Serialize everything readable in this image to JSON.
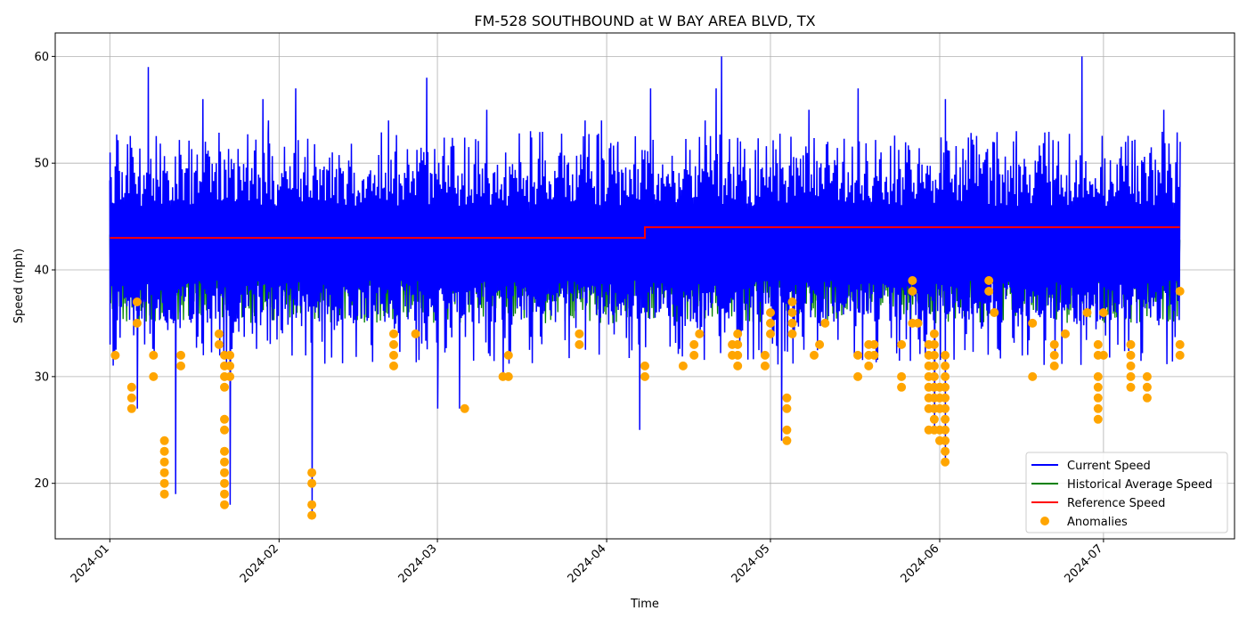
{
  "chart_data": {
    "type": "line",
    "title": "FM-528 SOUTHBOUND at W BAY AREA BLVD, TX",
    "xlabel": "Time",
    "ylabel": "Speed (mph)",
    "x_range": [
      "2023-12-22",
      "2024-07-25"
    ],
    "ylim": [
      14.8,
      62.2
    ],
    "x_ticks": [
      "2024-01",
      "2024-02",
      "2024-03",
      "2024-04",
      "2024-05",
      "2024-06",
      "2024-07"
    ],
    "x_tick_dates": [
      "2024-01-01",
      "2024-02-01",
      "2024-03-01",
      "2024-04-01",
      "2024-05-01",
      "2024-06-01",
      "2024-07-01"
    ],
    "y_ticks": [
      20,
      30,
      40,
      50,
      60
    ],
    "grid": true,
    "legend_position": "lower right",
    "legend": [
      "Current Speed",
      "Historical Average Speed",
      "Reference Speed",
      "Anomalies"
    ],
    "colors": {
      "current": "#0000ff",
      "historical": "#008000",
      "reference": "#ff0000",
      "anomalies": "#ffa500"
    },
    "series": [
      {
        "name": "Current Speed",
        "kind": "line",
        "range_start": "2024-01-01",
        "range_end": "2024-07-15",
        "band": [
          35,
          50
        ],
        "spikes": [
          {
            "x": "2024-01-01",
            "y": 51
          },
          {
            "x": "2024-01-01",
            "y": 33
          },
          {
            "x": "2024-01-08",
            "y": 59
          },
          {
            "x": "2024-01-06",
            "y": 27
          },
          {
            "x": "2024-01-07",
            "y": 37
          },
          {
            "x": "2024-01-13",
            "y": 19
          },
          {
            "x": "2024-01-18",
            "y": 56
          },
          {
            "x": "2024-01-23",
            "y": 18
          },
          {
            "x": "2024-01-29",
            "y": 56
          },
          {
            "x": "2024-01-30",
            "y": 54
          },
          {
            "x": "2024-02-04",
            "y": 57
          },
          {
            "x": "2024-02-07",
            "y": 17
          },
          {
            "x": "2024-02-21",
            "y": 54
          },
          {
            "x": "2024-02-28",
            "y": 58
          },
          {
            "x": "2024-03-01",
            "y": 27
          },
          {
            "x": "2024-03-05",
            "y": 27
          },
          {
            "x": "2024-03-05",
            "y": 28
          },
          {
            "x": "2024-03-10",
            "y": 55
          },
          {
            "x": "2024-03-13",
            "y": 30
          },
          {
            "x": "2024-03-18",
            "y": 53
          },
          {
            "x": "2024-03-28",
            "y": 54
          },
          {
            "x": "2024-03-31",
            "y": 54
          },
          {
            "x": "2024-04-03",
            "y": 52
          },
          {
            "x": "2024-04-07",
            "y": 25
          },
          {
            "x": "2024-04-09",
            "y": 57
          },
          {
            "x": "2024-04-19",
            "y": 54
          },
          {
            "x": "2024-04-22",
            "y": 60
          },
          {
            "x": "2024-04-21",
            "y": 57
          },
          {
            "x": "2024-05-03",
            "y": 24
          },
          {
            "x": "2024-05-08",
            "y": 55
          },
          {
            "x": "2024-05-17",
            "y": 57
          },
          {
            "x": "2024-05-31",
            "y": 25
          },
          {
            "x": "2024-06-02",
            "y": 56
          },
          {
            "x": "2024-06-02",
            "y": 22
          },
          {
            "x": "2024-06-15",
            "y": 53
          },
          {
            "x": "2024-06-27",
            "y": 60
          },
          {
            "x": "2024-07-05",
            "y": 52
          },
          {
            "x": "2024-07-12",
            "y": 55
          },
          {
            "x": "2024-07-15",
            "y": 52
          }
        ]
      },
      {
        "name": "Historical Average Speed",
        "kind": "line",
        "range_start": "2024-01-01",
        "range_end": "2024-07-15",
        "band": [
          35,
          46
        ]
      },
      {
        "name": "Reference Speed",
        "kind": "step",
        "segments": [
          {
            "x0": "2024-01-01",
            "x1": "2024-04-08",
            "y": 43
          },
          {
            "x0": "2024-04-08",
            "x1": "2024-07-15",
            "y": 44
          }
        ]
      },
      {
        "name": "Anomalies",
        "kind": "scatter",
        "points": [
          {
            "x": "2024-01-02",
            "y": 32
          },
          {
            "x": "2024-01-05",
            "y": 29
          },
          {
            "x": "2024-01-05",
            "y": 28
          },
          {
            "x": "2024-01-05",
            "y": 27
          },
          {
            "x": "2024-01-06",
            "y": 37
          },
          {
            "x": "2024-01-06",
            "y": 35
          },
          {
            "x": "2024-01-09",
            "y": 32
          },
          {
            "x": "2024-01-09",
            "y": 30
          },
          {
            "x": "2024-01-11",
            "y": 24
          },
          {
            "x": "2024-01-11",
            "y": 23
          },
          {
            "x": "2024-01-11",
            "y": 22
          },
          {
            "x": "2024-01-11",
            "y": 21
          },
          {
            "x": "2024-01-11",
            "y": 20
          },
          {
            "x": "2024-01-11",
            "y": 19
          },
          {
            "x": "2024-01-14",
            "y": 32
          },
          {
            "x": "2024-01-14",
            "y": 31
          },
          {
            "x": "2024-01-21",
            "y": 34
          },
          {
            "x": "2024-01-21",
            "y": 33
          },
          {
            "x": "2024-01-22",
            "y": 32
          },
          {
            "x": "2024-01-22",
            "y": 31
          },
          {
            "x": "2024-01-22",
            "y": 30
          },
          {
            "x": "2024-01-22",
            "y": 29
          },
          {
            "x": "2024-01-22",
            "y": 26
          },
          {
            "x": "2024-01-22",
            "y": 25
          },
          {
            "x": "2024-01-22",
            "y": 23
          },
          {
            "x": "2024-01-22",
            "y": 22
          },
          {
            "x": "2024-01-22",
            "y": 21
          },
          {
            "x": "2024-01-22",
            "y": 20
          },
          {
            "x": "2024-01-22",
            "y": 19
          },
          {
            "x": "2024-01-22",
            "y": 18
          },
          {
            "x": "2024-01-23",
            "y": 32
          },
          {
            "x": "2024-01-23",
            "y": 31
          },
          {
            "x": "2024-01-23",
            "y": 30
          },
          {
            "x": "2024-02-07",
            "y": 21
          },
          {
            "x": "2024-02-07",
            "y": 20
          },
          {
            "x": "2024-02-07",
            "y": 18
          },
          {
            "x": "2024-02-07",
            "y": 17
          },
          {
            "x": "2024-02-22",
            "y": 34
          },
          {
            "x": "2024-02-22",
            "y": 33
          },
          {
            "x": "2024-02-22",
            "y": 32
          },
          {
            "x": "2024-02-22",
            "y": 31
          },
          {
            "x": "2024-02-26",
            "y": 34
          },
          {
            "x": "2024-03-06",
            "y": 27
          },
          {
            "x": "2024-03-13",
            "y": 30
          },
          {
            "x": "2024-03-14",
            "y": 32
          },
          {
            "x": "2024-03-14",
            "y": 30
          },
          {
            "x": "2024-03-27",
            "y": 34
          },
          {
            "x": "2024-03-27",
            "y": 33
          },
          {
            "x": "2024-04-08",
            "y": 31
          },
          {
            "x": "2024-04-08",
            "y": 30
          },
          {
            "x": "2024-04-15",
            "y": 31
          },
          {
            "x": "2024-04-17",
            "y": 33
          },
          {
            "x": "2024-04-17",
            "y": 32
          },
          {
            "x": "2024-04-18",
            "y": 34
          },
          {
            "x": "2024-04-24",
            "y": 33
          },
          {
            "x": "2024-04-24",
            "y": 32
          },
          {
            "x": "2024-04-25",
            "y": 34
          },
          {
            "x": "2024-04-25",
            "y": 33
          },
          {
            "x": "2024-04-25",
            "y": 32
          },
          {
            "x": "2024-04-25",
            "y": 31
          },
          {
            "x": "2024-04-30",
            "y": 32
          },
          {
            "x": "2024-04-30",
            "y": 31
          },
          {
            "x": "2024-05-01",
            "y": 36
          },
          {
            "x": "2024-05-01",
            "y": 35
          },
          {
            "x": "2024-05-01",
            "y": 34
          },
          {
            "x": "2024-05-04",
            "y": 28
          },
          {
            "x": "2024-05-04",
            "y": 27
          },
          {
            "x": "2024-05-04",
            "y": 25
          },
          {
            "x": "2024-05-04",
            "y": 24
          },
          {
            "x": "2024-05-05",
            "y": 37
          },
          {
            "x": "2024-05-05",
            "y": 36
          },
          {
            "x": "2024-05-05",
            "y": 35
          },
          {
            "x": "2024-05-05",
            "y": 34
          },
          {
            "x": "2024-05-09",
            "y": 32
          },
          {
            "x": "2024-05-10",
            "y": 33
          },
          {
            "x": "2024-05-11",
            "y": 35
          },
          {
            "x": "2024-05-17",
            "y": 32
          },
          {
            "x": "2024-05-17",
            "y": 30
          },
          {
            "x": "2024-05-19",
            "y": 33
          },
          {
            "x": "2024-05-19",
            "y": 32
          },
          {
            "x": "2024-05-19",
            "y": 31
          },
          {
            "x": "2024-05-20",
            "y": 33
          },
          {
            "x": "2024-05-20",
            "y": 32
          },
          {
            "x": "2024-05-25",
            "y": 33
          },
          {
            "x": "2024-05-25",
            "y": 30
          },
          {
            "x": "2024-05-25",
            "y": 29
          },
          {
            "x": "2024-05-27",
            "y": 39
          },
          {
            "x": "2024-05-27",
            "y": 38
          },
          {
            "x": "2024-05-27",
            "y": 35
          },
          {
            "x": "2024-05-28",
            "y": 35
          },
          {
            "x": "2024-05-30",
            "y": 33
          },
          {
            "x": "2024-05-30",
            "y": 32
          },
          {
            "x": "2024-05-30",
            "y": 31
          },
          {
            "x": "2024-05-30",
            "y": 30
          },
          {
            "x": "2024-05-30",
            "y": 29
          },
          {
            "x": "2024-05-30",
            "y": 28
          },
          {
            "x": "2024-05-30",
            "y": 27
          },
          {
            "x": "2024-05-30",
            "y": 25
          },
          {
            "x": "2024-05-31",
            "y": 34
          },
          {
            "x": "2024-05-31",
            "y": 33
          },
          {
            "x": "2024-05-31",
            "y": 32
          },
          {
            "x": "2024-05-31",
            "y": 31
          },
          {
            "x": "2024-05-31",
            "y": 30
          },
          {
            "x": "2024-05-31",
            "y": 29
          },
          {
            "x": "2024-05-31",
            "y": 28
          },
          {
            "x": "2024-05-31",
            "y": 27
          },
          {
            "x": "2024-05-31",
            "y": 26
          },
          {
            "x": "2024-05-31",
            "y": 25
          },
          {
            "x": "2024-06-01",
            "y": 29
          },
          {
            "x": "2024-06-01",
            "y": 28
          },
          {
            "x": "2024-06-01",
            "y": 27
          },
          {
            "x": "2024-06-01",
            "y": 25
          },
          {
            "x": "2024-06-01",
            "y": 24
          },
          {
            "x": "2024-06-02",
            "y": 32
          },
          {
            "x": "2024-06-02",
            "y": 31
          },
          {
            "x": "2024-06-02",
            "y": 30
          },
          {
            "x": "2024-06-02",
            "y": 29
          },
          {
            "x": "2024-06-02",
            "y": 28
          },
          {
            "x": "2024-06-02",
            "y": 27
          },
          {
            "x": "2024-06-02",
            "y": 26
          },
          {
            "x": "2024-06-02",
            "y": 25
          },
          {
            "x": "2024-06-02",
            "y": 24
          },
          {
            "x": "2024-06-02",
            "y": 23
          },
          {
            "x": "2024-06-02",
            "y": 22
          },
          {
            "x": "2024-06-10",
            "y": 39
          },
          {
            "x": "2024-06-10",
            "y": 38
          },
          {
            "x": "2024-06-11",
            "y": 36
          },
          {
            "x": "2024-06-18",
            "y": 35
          },
          {
            "x": "2024-06-18",
            "y": 30
          },
          {
            "x": "2024-06-22",
            "y": 33
          },
          {
            "x": "2024-06-22",
            "y": 32
          },
          {
            "x": "2024-06-22",
            "y": 31
          },
          {
            "x": "2024-06-24",
            "y": 34
          },
          {
            "x": "2024-06-28",
            "y": 36
          },
          {
            "x": "2024-06-30",
            "y": 33
          },
          {
            "x": "2024-06-30",
            "y": 32
          },
          {
            "x": "2024-06-30",
            "y": 30
          },
          {
            "x": "2024-06-30",
            "y": 29
          },
          {
            "x": "2024-06-30",
            "y": 28
          },
          {
            "x": "2024-06-30",
            "y": 27
          },
          {
            "x": "2024-06-30",
            "y": 26
          },
          {
            "x": "2024-07-01",
            "y": 36
          },
          {
            "x": "2024-07-01",
            "y": 32
          },
          {
            "x": "2024-07-06",
            "y": 33
          },
          {
            "x": "2024-07-06",
            "y": 32
          },
          {
            "x": "2024-07-06",
            "y": 31
          },
          {
            "x": "2024-07-06",
            "y": 30
          },
          {
            "x": "2024-07-06",
            "y": 29
          },
          {
            "x": "2024-07-09",
            "y": 30
          },
          {
            "x": "2024-07-09",
            "y": 29
          },
          {
            "x": "2024-07-09",
            "y": 28
          },
          {
            "x": "2024-07-15",
            "y": 38
          },
          {
            "x": "2024-07-15",
            "y": 33
          },
          {
            "x": "2024-07-15",
            "y": 32
          }
        ]
      }
    ]
  }
}
